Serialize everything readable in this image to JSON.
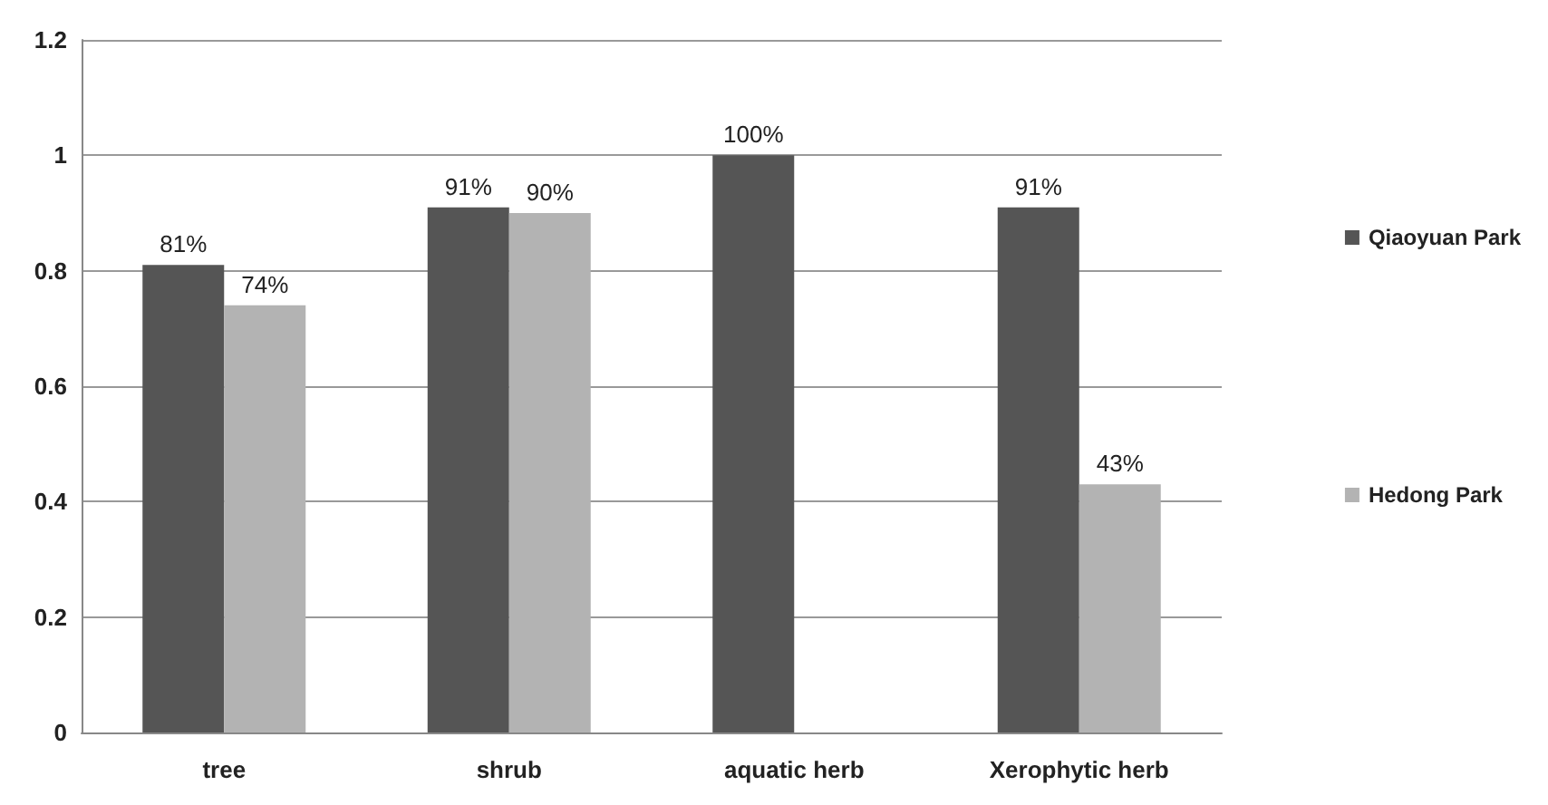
{
  "chart_data": {
    "type": "bar",
    "categories": [
      "tree",
      "shrub",
      "aquatic herb",
      "Xerophytic herb"
    ],
    "series": [
      {
        "name": "Qiaoyuan Park",
        "color": "#555555",
        "values": [
          0.81,
          0.91,
          1.0,
          0.91
        ],
        "value_labels": [
          "81%",
          "91%",
          "100%",
          "91%"
        ]
      },
      {
        "name": "Hedong Park",
        "color": "#b3b3b3",
        "values": [
          0.74,
          0.9,
          null,
          0.43
        ],
        "value_labels": [
          "74%",
          "90%",
          null,
          "43%"
        ]
      }
    ],
    "ylim": [
      0,
      1.2
    ],
    "yticks": [
      0,
      0.2,
      0.4,
      0.6,
      0.8,
      1,
      1.2
    ],
    "grid": "y",
    "legend": "right"
  }
}
